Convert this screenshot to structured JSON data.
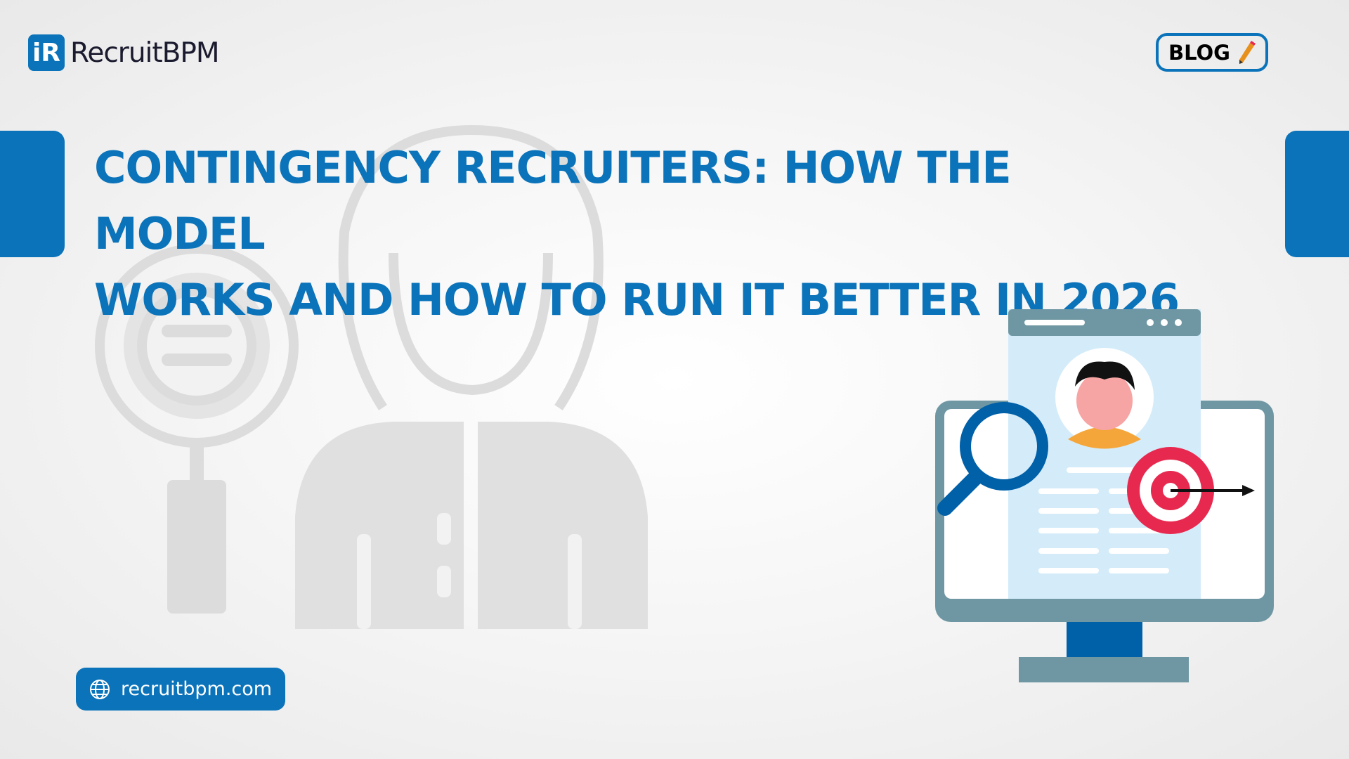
{
  "brand": {
    "logo_mark": "iR",
    "name": "RecruitBPM"
  },
  "header": {
    "blog_label": "BLOG",
    "blog_icon": "pencil-icon"
  },
  "title": {
    "line1": "Contingency Recruiters: How the Model",
    "line2": "Works and How to Run It Better in 2026"
  },
  "footer": {
    "url": "recruitbpm.com",
    "url_icon": "globe-icon"
  },
  "colors": {
    "brand_blue": "#0a73ba",
    "target_red": "#e8294f",
    "monitor_gray": "#6f97a3",
    "card_bg": "#d4ecfa"
  }
}
